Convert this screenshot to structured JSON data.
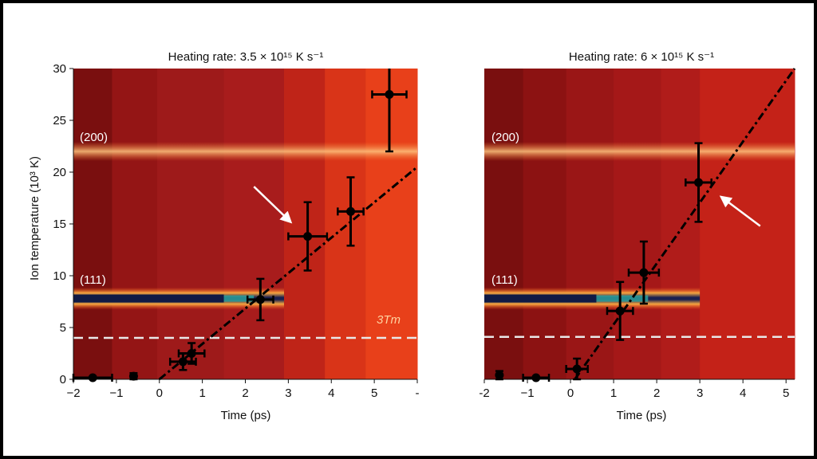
{
  "chart_data": [
    {
      "type": "scatter",
      "title": "Heating rate: 3.5 × 10¹⁵ K s⁻¹",
      "xlabel": "Time (ps)",
      "ylabel": "Ion temperature (10³ K)",
      "xlim": [
        -2,
        6
      ],
      "ylim": [
        0,
        30
      ],
      "xticks": [
        "−2",
        "−1",
        "0",
        "1",
        "2",
        "3",
        "4",
        "5",
        "-"
      ],
      "yticks": [
        "0",
        "5",
        "10",
        "15",
        "20",
        "25",
        "30"
      ],
      "peak_labels": [
        {
          "text": "(200)",
          "y": 22
        },
        {
          "text": "(111)",
          "y": 7.8
        }
      ],
      "melt_line": {
        "y": 4.0,
        "label": "3Tm"
      },
      "fit_line": {
        "x": [
          0,
          6
        ],
        "y": [
          0,
          20.5
        ]
      },
      "points": [
        {
          "x": -1.55,
          "y": 0.0,
          "xerr": 0.45,
          "yerr": 0.0
        },
        {
          "x": -0.6,
          "y": 0.3,
          "xerr": 0.0,
          "yerr": 0.3
        },
        {
          "x": 0.55,
          "y": 1.7,
          "xerr": 0.3,
          "yerr": 0.8
        },
        {
          "x": 0.75,
          "y": 2.5,
          "xerr": 0.3,
          "yerr": 1.0
        },
        {
          "x": 2.35,
          "y": 7.7,
          "xerr": 0.3,
          "yerr": 2.0
        },
        {
          "x": 3.45,
          "y": 13.8,
          "xerr": 0.45,
          "yerr": 3.3
        },
        {
          "x": 4.45,
          "y": 16.2,
          "xerr": 0.3,
          "yerr": 3.3
        },
        {
          "x": 5.35,
          "y": 27.5,
          "xerr": 0.4,
          "yerr": 5.5
        }
      ],
      "arrow": {
        "from": [
          2.2,
          18.6
        ],
        "to": [
          3.05,
          15.2
        ]
      }
    },
    {
      "type": "scatter",
      "title": "Heating rate: 6 × 10¹⁵ K s⁻¹",
      "xlabel": "Time (ps)",
      "ylabel": "",
      "xlim": [
        -2,
        5.2
      ],
      "ylim": [
        0,
        30
      ],
      "xticks": [
        "-2",
        "−1",
        "0",
        "1",
        "2",
        "3",
        "4",
        "5"
      ],
      "yticks": [],
      "peak_labels": [
        {
          "text": "(200)",
          "y": 22
        },
        {
          "text": "(111)",
          "y": 7.8
        }
      ],
      "melt_line": {
        "y": 4.1,
        "label": ""
      },
      "fit_line": {
        "x": [
          0.1,
          5.2
        ],
        "y": [
          0,
          30
        ]
      },
      "points": [
        {
          "x": -1.65,
          "y": 0.4,
          "xerr": 0.0,
          "yerr": 0.4
        },
        {
          "x": -0.8,
          "y": 0.1,
          "xerr": 0.3,
          "yerr": 0.0
        },
        {
          "x": 0.15,
          "y": 1.0,
          "xerr": 0.25,
          "yerr": 1.0
        },
        {
          "x": 1.15,
          "y": 6.6,
          "xerr": 0.3,
          "yerr": 2.8
        },
        {
          "x": 1.7,
          "y": 10.3,
          "xerr": 0.35,
          "yerr": 3.0
        },
        {
          "x": 2.97,
          "y": 19.0,
          "xerr": 0.3,
          "yerr": 3.8
        }
      ],
      "arrow": {
        "from": [
          4.4,
          14.8
        ],
        "to": [
          3.5,
          17.6
        ]
      }
    }
  ]
}
